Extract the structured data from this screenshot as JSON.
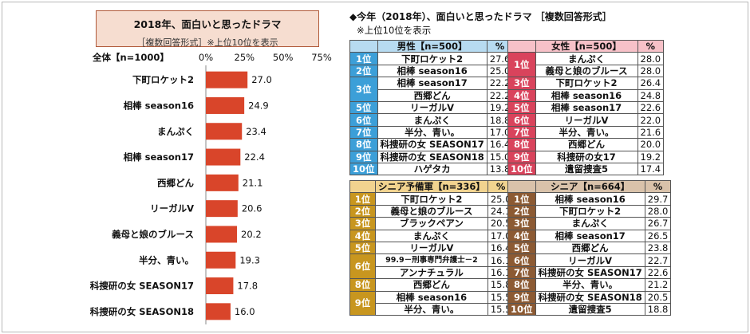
{
  "chart_data": {
    "type": "bar",
    "orientation": "horizontal",
    "title": "2018年、面白いと思ったドラマ",
    "subtitle": "［複数回答形式］※上位10位を表示",
    "group_label": "全体【n=1000】",
    "xlim": [
      0,
      75
    ],
    "ticks": [
      "0%",
      "25%",
      "50%",
      "75%"
    ],
    "tick_values": [
      0,
      25,
      50,
      75
    ],
    "categories": [
      "下町ロケット2",
      "相棒 season16",
      "まんぷく",
      "相棒 season17",
      "西郷どん",
      "リーガルV",
      "義母と娘のブルース",
      "半分、青い。",
      "科捜研の女 SEASON17",
      "科捜研の女 SEASON18"
    ],
    "values": [
      27.0,
      24.9,
      23.4,
      22.4,
      21.1,
      20.6,
      20.2,
      19.3,
      17.8,
      16.0
    ],
    "value_labels": [
      "27.0",
      "24.9",
      "23.4",
      "22.4",
      "21.1",
      "20.6",
      "20.2",
      "19.3",
      "17.8",
      "16.0"
    ],
    "bar_color": "#d9452a"
  },
  "right": {
    "title": "◆今年（2018年）、面白いと思ったドラマ ［複数回答形式］",
    "note": "※上位10位を表示"
  },
  "tables": {
    "male": {
      "header": "男性【n=500】",
      "pct": "%",
      "rows": [
        {
          "rank": "1位",
          "title": "下町ロケット2",
          "value": "27.6"
        },
        {
          "rank": "2位",
          "title": "相棒 season16",
          "value": "25.0"
        },
        {
          "rank": "3位",
          "title": "相棒 season17",
          "value": "22.2"
        },
        {
          "rank": "",
          "title": "西郷どん",
          "value": "22.2"
        },
        {
          "rank": "5位",
          "title": "リーガルV",
          "value": "19.2"
        },
        {
          "rank": "6位",
          "title": "まんぷく",
          "value": "18.8"
        },
        {
          "rank": "7位",
          "title": "半分、青い。",
          "value": "17.0"
        },
        {
          "rank": "8位",
          "title": "科捜研の女 SEASON17",
          "value": "16.4"
        },
        {
          "rank": "9位",
          "title": "科捜研の女 SEASON18",
          "value": "15.0"
        },
        {
          "rank": "10位",
          "title": "ハゲタカ",
          "value": "13.8"
        }
      ]
    },
    "female": {
      "header": "女性【n=500】",
      "pct": "%",
      "rows": [
        {
          "rank": "1位",
          "title": "まんぷく",
          "value": "28.0"
        },
        {
          "rank": "",
          "title": "義母と娘のブルース",
          "value": "28.0"
        },
        {
          "rank": "3位",
          "title": "下町ロケット2",
          "value": "26.4"
        },
        {
          "rank": "4位",
          "title": "相棒 season16",
          "value": "24.8"
        },
        {
          "rank": "5位",
          "title": "相棒 season17",
          "value": "22.6"
        },
        {
          "rank": "6位",
          "title": "リーガルV",
          "value": "22.0"
        },
        {
          "rank": "7位",
          "title": "半分、青い。",
          "value": "21.6"
        },
        {
          "rank": "8位",
          "title": "西郷どん",
          "value": "20.0"
        },
        {
          "rank": "9位",
          "title": "科捜研の女17",
          "value": "19.2"
        },
        {
          "rank": "10位",
          "title": "遺留捜査5",
          "value": "17.4"
        }
      ]
    },
    "presenior": {
      "header": "シニア予備軍【n=336】",
      "pct": "%",
      "rows": [
        {
          "rank": "1位",
          "title": "下町ロケット2",
          "value": "25.0"
        },
        {
          "rank": "2位",
          "title": "義母と娘のブルース",
          "value": "24.1"
        },
        {
          "rank": "3位",
          "title": "ブラックペアン",
          "value": "20.5"
        },
        {
          "rank": "4位",
          "title": "まんぷく",
          "value": "17.0"
        },
        {
          "rank": "5位",
          "title": "リーガルV",
          "value": "16.4"
        },
        {
          "rank": "6位",
          "title": "99.9－刑事専門弁護士－2",
          "value": "16.1"
        },
        {
          "rank": "",
          "title": "アンナチュラル",
          "value": "16.1"
        },
        {
          "rank": "8位",
          "title": "西郷どん",
          "value": "15.8"
        },
        {
          "rank": "9位",
          "title": "相棒 season16",
          "value": "15.5"
        },
        {
          "rank": "",
          "title": "半分、青い。",
          "value": "15.5"
        }
      ]
    },
    "senior": {
      "header": "シニア【n=664】",
      "pct": "%",
      "rows": [
        {
          "rank": "1位",
          "title": "相棒 season16",
          "value": "29.7"
        },
        {
          "rank": "2位",
          "title": "下町ロケット2",
          "value": "28.0"
        },
        {
          "rank": "3位",
          "title": "まんぷく",
          "value": "26.7"
        },
        {
          "rank": "4位",
          "title": "相棒 season17",
          "value": "26.5"
        },
        {
          "rank": "5位",
          "title": "西郷どん",
          "value": "23.8"
        },
        {
          "rank": "6位",
          "title": "リーガルV",
          "value": "22.7"
        },
        {
          "rank": "7位",
          "title": "科捜研の女 SEASON17",
          "value": "22.6"
        },
        {
          "rank": "8位",
          "title": "半分、青い。",
          "value": "21.2"
        },
        {
          "rank": "9位",
          "title": "科捜研の女 SEASON18",
          "value": "20.5"
        },
        {
          "rank": "10位",
          "title": "遺留捜査5",
          "value": "18.8"
        }
      ]
    }
  }
}
